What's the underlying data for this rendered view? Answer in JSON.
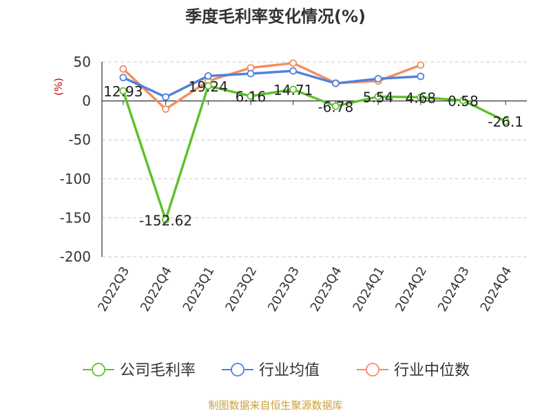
{
  "chart_data": {
    "type": "line",
    "title": "季度毛利率变化情况(%)",
    "ylabel": "(%)",
    "xlabel": "",
    "ylim": [
      -200,
      50
    ],
    "yticks": [
      50,
      0,
      -50,
      -100,
      -150,
      -200
    ],
    "grid": true,
    "legend_position": "bottom",
    "categories": [
      "2022Q3",
      "2022Q4",
      "2023Q1",
      "2023Q2",
      "2023Q3",
      "2023Q4",
      "2024Q1",
      "2024Q2",
      "2024Q3",
      "2024Q4"
    ],
    "series": [
      {
        "name": "公司毛利率",
        "color": "#5dc22a",
        "values": [
          12.93,
          -152.62,
          19.24,
          6.16,
          14.71,
          -6.78,
          5.54,
          4.68,
          0.58,
          -26.1
        ],
        "labels": [
          "12.93",
          "-152.62",
          "19.24",
          "6.16",
          "14.71",
          "-6.78",
          "5.54",
          "4.68",
          "0.58",
          "-26.1"
        ]
      },
      {
        "name": "行业均值",
        "color": "#4f81e0",
        "values": [
          30,
          5,
          32,
          35,
          38.5,
          22.5,
          28.5,
          31.5,
          null,
          null
        ]
      },
      {
        "name": "行业中位数",
        "color": "#f58d5f",
        "values": [
          41,
          -10.5,
          25.5,
          42.5,
          48.5,
          23,
          25.5,
          46,
          null,
          null
        ]
      }
    ]
  },
  "source_text": "制图数据来自恒生聚源数据库",
  "colors": {
    "axis_label": "#cc0000",
    "source": "#c9a13b",
    "grid": "#c8c8c8"
  }
}
